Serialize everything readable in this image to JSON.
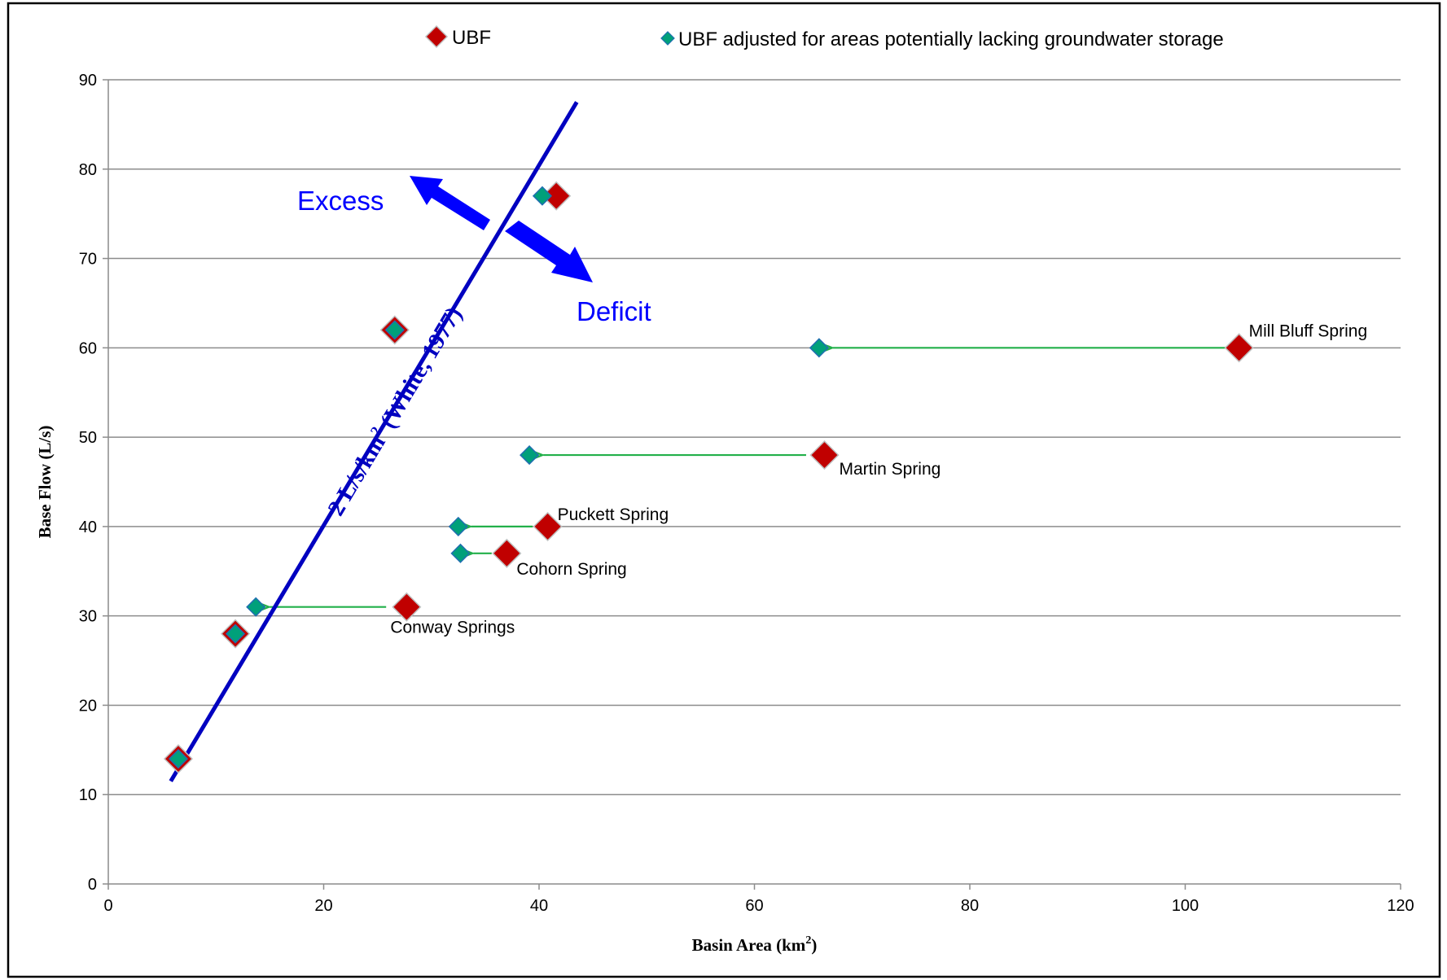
{
  "chart_data": {
    "type": "scatter",
    "xlabel": "Basin Area (km",
    "xlabel_sup": "2",
    "xlabel_end": ")",
    "ylabel": "Base Flow (L/s)",
    "xlim": [
      0,
      120
    ],
    "ylim": [
      0,
      90
    ],
    "x_ticks": [
      0,
      20,
      40,
      60,
      80,
      100,
      120
    ],
    "y_ticks": [
      0,
      10,
      20,
      30,
      40,
      50,
      60,
      70,
      80,
      90
    ],
    "grid": "horizontal",
    "legend_position": "top",
    "series": [
      {
        "name": "UBF",
        "marker": "diamond-large",
        "color": "#c00000",
        "points": [
          {
            "x": 6.5,
            "y": 14,
            "label": ""
          },
          {
            "x": 11.8,
            "y": 28,
            "label": ""
          },
          {
            "x": 26.6,
            "y": 62,
            "label": ""
          },
          {
            "x": 27.7,
            "y": 31,
            "label": "Conway Springs"
          },
          {
            "x": 37,
            "y": 37,
            "label": "Cohorn Spring"
          },
          {
            "x": 40.8,
            "y": 40,
            "label": "Puckett Spring"
          },
          {
            "x": 41.6,
            "y": 77,
            "label": ""
          },
          {
            "x": 66.5,
            "y": 48,
            "label": "Martin Spring"
          },
          {
            "x": 105,
            "y": 60,
            "label": "Mill Bluff Spring"
          }
        ]
      },
      {
        "name": "UBF adjusted for areas potentially lacking groundwater storage",
        "marker": "diamond-small",
        "color": "#00a07a",
        "points": [
          {
            "x": 6.5,
            "y": 14
          },
          {
            "x": 11.8,
            "y": 28
          },
          {
            "x": 13.7,
            "y": 31
          },
          {
            "x": 26.6,
            "y": 62
          },
          {
            "x": 32.7,
            "y": 37
          },
          {
            "x": 32.5,
            "y": 40
          },
          {
            "x": 39.1,
            "y": 48
          },
          {
            "x": 40.3,
            "y": 77
          },
          {
            "x": 66,
            "y": 60
          }
        ]
      }
    ],
    "adjustment_arrows": [
      {
        "from": [
          103.8,
          60
        ],
        "to": [
          67.3,
          60
        ]
      },
      {
        "from": [
          64.8,
          48
        ],
        "to": [
          40.4,
          48
        ]
      },
      {
        "from": [
          39.4,
          40
        ],
        "to": [
          33.7,
          40
        ]
      },
      {
        "from": [
          35.6,
          37
        ],
        "to": [
          33.9,
          37
        ]
      },
      {
        "from": [
          25.8,
          31
        ],
        "to": [
          15.0,
          31
        ]
      }
    ],
    "reference_line": {
      "label": "2 L/s/km",
      "label_sup": "2",
      "label_end": " (White, 1977)",
      "color": "#0000c0",
      "from": [
        5.8,
        11.5
      ],
      "to": [
        43.5,
        87.5
      ]
    },
    "annotations": {
      "excess": "Excess",
      "deficit": "Deficit",
      "color": "#0000ff"
    },
    "arrow_color": "#22b04a"
  }
}
